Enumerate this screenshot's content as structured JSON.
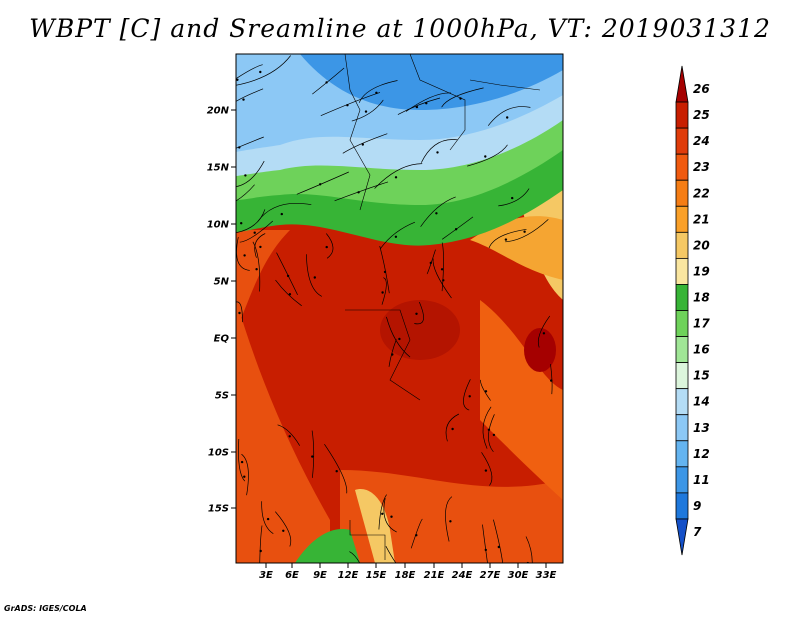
{
  "title": "WBPT [C] and Sreamline at 1000hPa, VT: 2019031312",
  "credit": "GrADS: IGES/COLA",
  "map": {
    "lat_ticks": [
      "20N",
      "15N",
      "10N",
      "5N",
      "EQ",
      "5S",
      "10S",
      "15S"
    ],
    "lon_ticks": [
      "3E",
      "6E",
      "9E",
      "12E",
      "15E",
      "18E",
      "21E",
      "24E",
      "27E",
      "30E",
      "33E"
    ],
    "lat_range": [
      -20,
      25
    ],
    "lon_range": [
      0,
      35
    ],
    "field_description_colors": {
      "cold_north": "#3a8fe8",
      "tropical_core": "#c81e00",
      "ocean_margin": "#ee6a10"
    }
  },
  "colorbar": {
    "labels": [
      "26",
      "25",
      "24",
      "23",
      "22",
      "21",
      "20",
      "19",
      "18",
      "17",
      "16",
      "15",
      "14",
      "13",
      "12",
      "11",
      "9",
      "7"
    ],
    "colors": [
      "#a50000",
      "#c81e00",
      "#e03c0a",
      "#f05a0f",
      "#f57d14",
      "#faa028",
      "#f5c864",
      "#fae6a0",
      "#37b436",
      "#6ed25a",
      "#a0e696",
      "#dcf5dc",
      "#b4dcf5",
      "#8cc8f5",
      "#64b4f0",
      "#3c96e6",
      "#1e78dc",
      "#1450c8"
    ]
  }
}
